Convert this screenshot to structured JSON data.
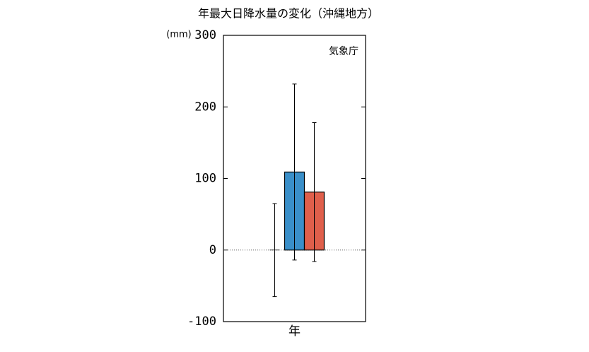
{
  "chart_data": {
    "type": "bar",
    "title": "年最大日降水量の変化（沖縄地方）",
    "y_unit": "(mm)",
    "note": "気象庁",
    "categories": [
      "年"
    ],
    "series": [
      {
        "values": [
          0
        ],
        "errors": [
          65
        ]
      },
      {
        "color": "#3a8fc9",
        "values": [
          109
        ],
        "errors": [
          123
        ]
      },
      {
        "color": "#df5f4b",
        "values": [
          81
        ],
        "errors": [
          97
        ]
      }
    ],
    "ylim": [
      -100,
      300
    ],
    "yticks": [
      -100,
      0,
      100,
      200,
      300
    ]
  }
}
